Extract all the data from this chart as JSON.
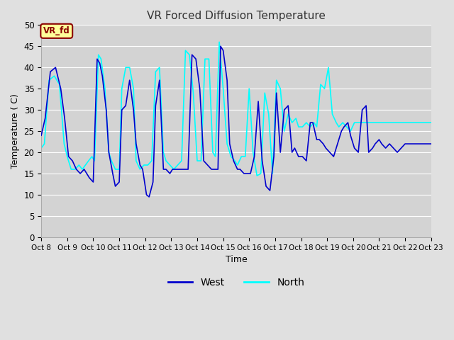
{
  "title": "VR Forced Diffusion Temperature",
  "xlabel": "Time",
  "ylabel": "Temperature (C)",
  "ylim": [
    0,
    50
  ],
  "ytick_values": [
    0,
    5,
    10,
    15,
    20,
    25,
    30,
    35,
    40,
    45,
    50
  ],
  "xtick_labels": [
    "Oct 8",
    "Oct 9",
    "Oct 10",
    "Oct 11",
    "Oct 12",
    "Oct 13",
    "Oct 14",
    "Oct 15",
    "Oct 16",
    "Oct 17",
    "Oct 18",
    "Oct 19",
    "Oct 20",
    "Oct 21",
    "Oct 22",
    "Oct 23"
  ],
  "west_color": "#0000CD",
  "north_color": "#00FFFF",
  "fig_bg_color": "#E0E0E0",
  "plot_bg_color": "#D3D3D3",
  "grid_color": "#FFFFFF",
  "legend_label_west": "West",
  "legend_label_north": "North",
  "annotation_text": "VR_fd",
  "annotation_bg": "#FFFF99",
  "annotation_border": "#8B0000",
  "west_x": [
    0.0,
    0.15,
    0.35,
    0.55,
    0.75,
    0.9,
    1.05,
    1.2,
    1.35,
    1.5,
    1.65,
    1.75,
    1.85,
    2.0,
    2.15,
    2.25,
    2.35,
    2.5,
    2.6,
    2.75,
    2.85,
    3.0,
    3.1,
    3.25,
    3.4,
    3.55,
    3.65,
    3.8,
    3.9,
    4.05,
    4.15,
    4.3,
    4.4,
    4.55,
    4.7,
    4.8,
    4.95,
    5.05,
    5.2,
    5.35,
    5.5,
    5.65,
    5.8,
    5.95,
    6.1,
    6.25,
    6.4,
    6.55,
    6.65,
    6.8,
    6.9,
    7.0,
    7.15,
    7.25,
    7.4,
    7.55,
    7.65,
    7.8,
    7.9,
    8.05,
    8.2,
    8.35,
    8.5,
    8.65,
    8.8,
    8.95,
    9.05,
    9.2,
    9.35,
    9.5,
    9.65,
    9.75,
    9.9,
    10.05,
    10.2,
    10.35,
    10.45,
    10.6,
    10.7,
    10.85,
    10.95,
    11.1,
    11.25,
    11.4,
    11.55,
    11.65,
    11.8,
    11.9,
    12.05,
    12.2,
    12.35,
    12.5,
    12.6,
    12.75,
    12.85,
    13.0,
    13.1,
    13.25,
    13.4,
    13.55,
    13.7,
    13.85,
    14.0,
    14.15,
    14.3,
    14.45,
    14.6,
    14.75,
    14.9,
    15.0
  ],
  "west_y": [
    24,
    28,
    39,
    40,
    35,
    28,
    19,
    18,
    16,
    15,
    16,
    15,
    14,
    13,
    42,
    41,
    38,
    30,
    20,
    15,
    12,
    13,
    30,
    31,
    37,
    30,
    22,
    17,
    16,
    10,
    9.5,
    13,
    31,
    37,
    16,
    16,
    15,
    16,
    16,
    16,
    16,
    16,
    43,
    42,
    35,
    18,
    17,
    16,
    16,
    16,
    45,
    44,
    37,
    22,
    18,
    16,
    16,
    15,
    15,
    15,
    19,
    32,
    18,
    12,
    11,
    19,
    34,
    20,
    30,
    31,
    20,
    21,
    19,
    19,
    18,
    27,
    27,
    23,
    23,
    22,
    21,
    20,
    19,
    22,
    25,
    26,
    27,
    24,
    21,
    20,
    30,
    31,
    20,
    21,
    22,
    23,
    22,
    21,
    22,
    21,
    20,
    21,
    22,
    22,
    22,
    22,
    22,
    22,
    22,
    22
  ],
  "north_x": [
    0.0,
    0.12,
    0.3,
    0.5,
    0.7,
    0.88,
    1.0,
    1.15,
    1.3,
    1.45,
    1.58,
    1.7,
    1.82,
    1.95,
    2.05,
    2.2,
    2.3,
    2.45,
    2.6,
    2.7,
    2.85,
    3.0,
    3.1,
    3.25,
    3.4,
    3.55,
    3.65,
    3.8,
    3.95,
    4.1,
    4.25,
    4.4,
    4.55,
    4.7,
    4.8,
    4.95,
    5.1,
    5.25,
    5.4,
    5.55,
    5.7,
    5.85,
    6.0,
    6.15,
    6.3,
    6.45,
    6.6,
    6.7,
    6.85,
    7.0,
    7.15,
    7.3,
    7.45,
    7.55,
    7.7,
    7.85,
    8.0,
    8.15,
    8.3,
    8.45,
    8.6,
    8.75,
    8.9,
    9.05,
    9.2,
    9.35,
    9.5,
    9.65,
    9.8,
    9.9,
    10.05,
    10.2,
    10.35,
    10.5,
    10.6,
    10.75,
    10.9,
    11.05,
    11.2,
    11.35,
    11.45,
    11.6,
    11.75,
    11.9,
    12.05,
    12.2,
    12.35,
    12.5,
    12.65,
    12.8,
    12.95,
    13.1,
    13.25,
    13.4,
    13.55,
    13.7,
    13.85,
    14.0,
    14.15,
    14.3,
    14.45,
    14.6,
    14.75,
    14.9,
    15.0
  ],
  "north_y": [
    21,
    22,
    37,
    38,
    36,
    22,
    19,
    16,
    16,
    17,
    16,
    17,
    18,
    19,
    18,
    43,
    42,
    35,
    20,
    18,
    16,
    16,
    35,
    40,
    40,
    35,
    18,
    16,
    17,
    17,
    18,
    39,
    40,
    20,
    18,
    17,
    16,
    17,
    18,
    44,
    43,
    34,
    18,
    18,
    42,
    42,
    20,
    19,
    46,
    35,
    22,
    19,
    18,
    17,
    19,
    19,
    35,
    20,
    14.5,
    15,
    34,
    29,
    15,
    37,
    35,
    25,
    29,
    27,
    28,
    26,
    26,
    27,
    26,
    27,
    26,
    36,
    35,
    40,
    29,
    27,
    26,
    27,
    26,
    25,
    27,
    27,
    27,
    27,
    27,
    27,
    27,
    27,
    27,
    27,
    27,
    27,
    27,
    27,
    27,
    27,
    27,
    27,
    27,
    27,
    27
  ]
}
